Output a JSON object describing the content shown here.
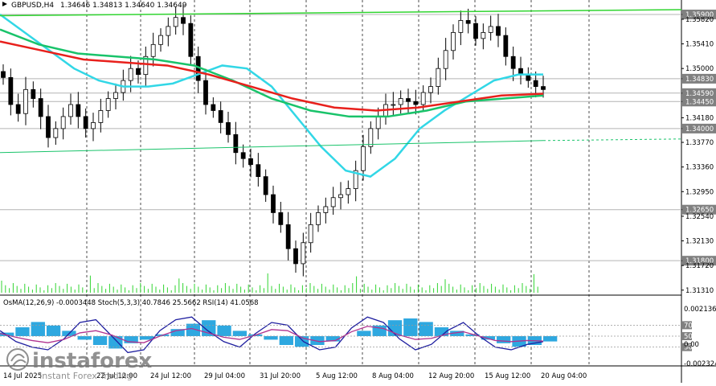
{
  "symbol_header": {
    "symbol": "GBPUSD,H4",
    "ohlc": "1.34646 1.34813 1.34640 1.34649"
  },
  "indicator_header": "OsMA(12,26,9) -0.0003448   Stoch(5,3,3) 40.7846 25.5662   RSI(14) 41.0568",
  "watermark": {
    "brand": "instaforex",
    "tagline": "Instant Forex Trading"
  },
  "colors": {
    "background": "#ffffff",
    "bull_candle": "#000000",
    "bear_candle": "#000000",
    "ema_red": "#e8201c",
    "ema_green": "#19c36a",
    "ema_cyan": "#32d7e6",
    "trend_green": "#31d531",
    "grid": "#000000",
    "level_line": "#b4b4b4",
    "osma_bar": "#2ea8e0",
    "stoch_main": "#1f1fa0",
    "rsi_line": "#b0338f",
    "price_tag_bg": "#808080"
  },
  "chart_data": {
    "type": "candlestick",
    "timeframe": "H4",
    "price_axis": [
      "1.35900",
      "1.35820",
      "1.35410",
      "1.35000",
      "1.34830",
      "1.34590",
      "1.34450",
      "1.34180",
      "1.34000",
      "1.33770",
      "1.33360",
      "1.32950",
      "1.32650",
      "1.32540",
      "1.32130",
      "1.31800",
      "1.31720",
      "1.31310"
    ],
    "highlighted_levels": [
      "1.35900",
      "1.34830",
      "1.34590",
      "1.34450",
      "1.34000",
      "1.32650",
      "1.31800"
    ],
    "ylim": [
      1.3124,
      1.3598
    ],
    "x_labels": [
      "14 Jul 2025",
      "22 Jul 12:00",
      "24 Jul 12:00",
      "29 Jul 04:00",
      "31 Jul 20:00",
      "5 Aug 12:00",
      "8 Aug 04:00",
      "12 Aug 20:00",
      "15 Aug 12:00",
      "20 Aug 04:00"
    ],
    "indicator_axis": [
      "0.002136",
      "70",
      "50",
      "30",
      "0.00",
      "-0.002324"
    ],
    "price_series": [
      1.3485,
      1.344,
      1.3425,
      1.3465,
      1.345,
      1.342,
      1.3385,
      1.34,
      1.342,
      1.344,
      1.342,
      1.34,
      1.341,
      1.343,
      1.345,
      1.346,
      1.348,
      1.35,
      1.349,
      1.352,
      1.354,
      1.3555,
      1.357,
      1.3585,
      1.3575,
      1.352,
      1.348,
      1.344,
      1.343,
      1.341,
      1.339,
      1.336,
      1.335,
      1.334,
      1.332,
      1.329,
      1.326,
      1.324,
      1.32,
      1.3175,
      1.321,
      1.324,
      1.326,
      1.327,
      1.3285,
      1.329,
      1.33,
      1.333,
      1.337,
      1.34,
      1.342,
      1.344,
      1.344,
      1.345,
      1.3445,
      1.344,
      1.346,
      1.347,
      1.35,
      1.353,
      1.356,
      1.358,
      1.3575,
      1.355,
      1.356,
      1.357,
      1.3555,
      1.352,
      1.35,
      1.349,
      1.348,
      1.347,
      1.3465
    ],
    "ema_cyan": [
      1.359,
      1.356,
      1.353,
      1.35,
      1.348,
      1.347,
      1.347,
      1.3475,
      1.349,
      1.3505,
      1.35,
      1.347,
      1.342,
      1.337,
      1.333,
      1.332,
      1.335,
      1.34,
      1.343,
      1.3455,
      1.348,
      1.349,
      1.349
    ],
    "ema_green": [
      1.3565,
      1.354,
      1.3525,
      1.352,
      1.3515,
      1.3505,
      1.348,
      1.345,
      1.343,
      1.342,
      1.342,
      1.343,
      1.3445,
      1.345,
      1.3455
    ],
    "ema_red": [
      1.3545,
      1.353,
      1.3515,
      1.351,
      1.3505,
      1.349,
      1.347,
      1.345,
      1.3435,
      1.343,
      1.3435,
      1.3445,
      1.3455,
      1.3458
    ],
    "trend_upper": [
      1.3588,
      1.3598
    ],
    "trend_lower": [
      1.336,
      1.338
    ],
    "osma": [
      0.2,
      0.5,
      0.8,
      0.6,
      0.3,
      -0.2,
      -0.5,
      -0.7,
      -0.4,
      -0.2,
      0.1,
      0.4,
      0.7,
      0.9,
      0.6,
      0.3,
      0.1,
      -0.2,
      -0.5,
      -0.6,
      -0.5,
      -0.3,
      0.0,
      0.3,
      0.6,
      0.9,
      1.0,
      0.8,
      0.5,
      0.3,
      0.1,
      -0.2,
      -0.4,
      -0.6,
      -0.5,
      -0.3
    ],
    "stoch": [
      60,
      40,
      30,
      25,
      45,
      75,
      80,
      50,
      20,
      25,
      60,
      80,
      85,
      60,
      40,
      30,
      55,
      75,
      70,
      40,
      25,
      30,
      65,
      85,
      75,
      45,
      25,
      35,
      60,
      75,
      50,
      30,
      25,
      35,
      40
    ],
    "rsi": [
      55,
      48,
      42,
      38,
      44,
      56,
      60,
      52,
      40,
      38,
      50,
      60,
      64,
      56,
      48,
      44,
      52,
      62,
      60,
      46,
      40,
      42,
      58,
      68,
      64,
      52,
      44,
      46,
      54,
      58,
      50,
      42,
      40,
      42,
      41
    ]
  }
}
